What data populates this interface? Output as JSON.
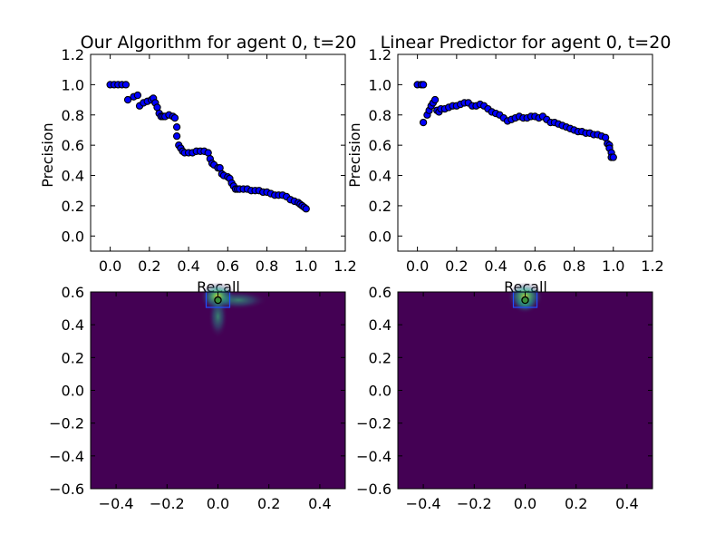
{
  "chart_data": [
    {
      "type": "scatter",
      "title": "Our Algorithm for agent 0, t=20",
      "xlabel": "Recall",
      "ylabel": "Precision",
      "xlim": [
        -0.1,
        1.2
      ],
      "ylim": [
        -0.1,
        1.2
      ],
      "xticks": [
        "0.0",
        "0.2",
        "0.4",
        "0.6",
        "0.8",
        "1.0",
        "1.2"
      ],
      "yticks": [
        "0.0",
        "0.2",
        "0.4",
        "0.6",
        "0.8",
        "1.0",
        "1.2"
      ],
      "marker_color": "#0000ff",
      "x": [
        0.0,
        0.02,
        0.04,
        0.06,
        0.08,
        0.09,
        0.12,
        0.14,
        0.15,
        0.17,
        0.19,
        0.21,
        0.22,
        0.23,
        0.24,
        0.25,
        0.26,
        0.27,
        0.28,
        0.3,
        0.32,
        0.33,
        0.34,
        0.34,
        0.35,
        0.36,
        0.37,
        0.38,
        0.4,
        0.42,
        0.44,
        0.46,
        0.48,
        0.5,
        0.51,
        0.52,
        0.53,
        0.55,
        0.56,
        0.57,
        0.58,
        0.6,
        0.61,
        0.62,
        0.63,
        0.64,
        0.65,
        0.66,
        0.68,
        0.7,
        0.72,
        0.74,
        0.76,
        0.78,
        0.8,
        0.82,
        0.84,
        0.86,
        0.88,
        0.9,
        0.92,
        0.94,
        0.96,
        0.97,
        0.98,
        0.99,
        1.0
      ],
      "y": [
        1.0,
        1.0,
        1.0,
        1.0,
        1.0,
        0.9,
        0.92,
        0.93,
        0.86,
        0.88,
        0.89,
        0.9,
        0.91,
        0.88,
        0.85,
        0.81,
        0.79,
        0.79,
        0.79,
        0.8,
        0.79,
        0.78,
        0.72,
        0.66,
        0.6,
        0.58,
        0.56,
        0.55,
        0.55,
        0.55,
        0.56,
        0.56,
        0.56,
        0.55,
        0.51,
        0.48,
        0.47,
        0.45,
        0.45,
        0.41,
        0.4,
        0.39,
        0.38,
        0.35,
        0.33,
        0.31,
        0.31,
        0.31,
        0.31,
        0.31,
        0.3,
        0.3,
        0.3,
        0.29,
        0.29,
        0.28,
        0.27,
        0.27,
        0.27,
        0.26,
        0.24,
        0.23,
        0.22,
        0.21,
        0.2,
        0.19,
        0.18
      ]
    },
    {
      "type": "scatter",
      "title": "Linear Predictor for agent 0, t=20",
      "xlabel": "Recall",
      "ylabel": "Precision",
      "xlim": [
        -0.1,
        1.2
      ],
      "ylim": [
        -0.1,
        1.2
      ],
      "xticks": [
        "0.0",
        "0.2",
        "0.4",
        "0.6",
        "0.8",
        "1.0",
        "1.2"
      ],
      "yticks": [
        "0.0",
        "0.2",
        "0.4",
        "0.6",
        "0.8",
        "1.0",
        "1.2"
      ],
      "marker_color": "#0000ff",
      "x": [
        0.0,
        0.02,
        0.03,
        0.03,
        0.05,
        0.06,
        0.07,
        0.08,
        0.09,
        0.1,
        0.11,
        0.12,
        0.14,
        0.16,
        0.18,
        0.2,
        0.22,
        0.24,
        0.26,
        0.28,
        0.3,
        0.32,
        0.34,
        0.36,
        0.38,
        0.4,
        0.42,
        0.44,
        0.46,
        0.48,
        0.5,
        0.52,
        0.54,
        0.56,
        0.58,
        0.6,
        0.62,
        0.64,
        0.66,
        0.68,
        0.7,
        0.72,
        0.74,
        0.76,
        0.78,
        0.8,
        0.82,
        0.84,
        0.86,
        0.88,
        0.9,
        0.92,
        0.94,
        0.96,
        0.97,
        0.98,
        0.98,
        0.99,
        0.99,
        1.0
      ],
      "y": [
        1.0,
        1.0,
        1.0,
        0.75,
        0.8,
        0.83,
        0.86,
        0.88,
        0.9,
        0.83,
        0.82,
        0.84,
        0.84,
        0.85,
        0.86,
        0.86,
        0.87,
        0.88,
        0.88,
        0.86,
        0.86,
        0.87,
        0.86,
        0.84,
        0.82,
        0.81,
        0.8,
        0.78,
        0.76,
        0.77,
        0.78,
        0.79,
        0.78,
        0.78,
        0.79,
        0.79,
        0.78,
        0.79,
        0.77,
        0.75,
        0.75,
        0.74,
        0.73,
        0.72,
        0.71,
        0.7,
        0.69,
        0.69,
        0.68,
        0.68,
        0.67,
        0.67,
        0.66,
        0.65,
        0.61,
        0.6,
        0.58,
        0.55,
        0.52,
        0.52
      ]
    },
    {
      "type": "heatmap",
      "title": "",
      "xlim": [
        -0.5,
        0.5
      ],
      "ylim": [
        -0.6,
        0.6
      ],
      "xticks": [
        "−0.4",
        "−0.2",
        "0.0",
        "0.2",
        "0.4"
      ],
      "yticks": [
        "−0.6",
        "−0.4",
        "−0.2",
        "0.0",
        "0.2",
        "0.4",
        "0.6"
      ],
      "background_color": "#440154",
      "point": {
        "x": 0.0,
        "y": 0.55
      },
      "hotspots": [
        {
          "x": 0.0,
          "y": 0.57,
          "intensity": 1.0
        },
        {
          "x": 0.08,
          "y": 0.55,
          "intensity": 0.5
        },
        {
          "x": 0.0,
          "y": 0.45,
          "intensity": 0.35
        }
      ]
    },
    {
      "type": "heatmap",
      "title": "",
      "xlim": [
        -0.5,
        0.5
      ],
      "ylim": [
        -0.6,
        0.6
      ],
      "xticks": [
        "−0.4",
        "−0.2",
        "0.0",
        "0.2",
        "0.4"
      ],
      "yticks": [
        "−0.6",
        "−0.4",
        "−0.2",
        "0.0",
        "0.2",
        "0.4",
        "0.6"
      ],
      "background_color": "#440154",
      "point": {
        "x": 0.0,
        "y": 0.55
      },
      "hotspots": [
        {
          "x": 0.0,
          "y": 0.57,
          "intensity": 1.0
        },
        {
          "x": 0.0,
          "y": 0.53,
          "intensity": 0.6
        }
      ]
    }
  ]
}
